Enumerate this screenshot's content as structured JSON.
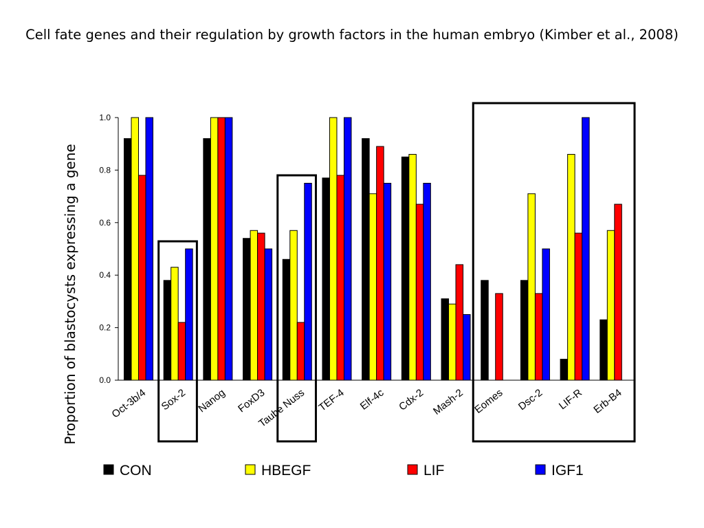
{
  "title": "Cell fate genes and their regulation by growth factors in the human embryo (Kimber et al., 2008)",
  "chart_data": {
    "type": "bar",
    "ylabel": "Proportion of blastocysts expressing a gene",
    "xlabel": "",
    "ylim": [
      0,
      1.0
    ],
    "yticks": [
      "0.0",
      "0.2",
      "0.4",
      "0.6",
      "0.8",
      "1.0"
    ],
    "grid": false,
    "legend_position": "bottom",
    "categories": [
      "Oct-3b/4",
      "Sox-2",
      "Nanog",
      "FoxD3",
      "Taube Nuss",
      "TEF-4",
      "Elf-4c",
      "Cdx-2",
      "Mash-2",
      "Eomes",
      "Dsc-2",
      "LIF-R",
      "Erb-B4"
    ],
    "series": [
      {
        "name": "CON",
        "color": "#000000",
        "values": [
          0.92,
          0.38,
          0.92,
          0.54,
          0.46,
          0.77,
          0.92,
          0.85,
          0.31,
          0.38,
          0.38,
          0.08,
          0.23
        ]
      },
      {
        "name": "HBEGF",
        "color": "#ffff00",
        "values": [
          1.0,
          0.43,
          1.0,
          0.57,
          0.57,
          1.0,
          0.71,
          0.86,
          0.29,
          0,
          0.71,
          0.86,
          0.57
        ]
      },
      {
        "name": "LIF",
        "color": "#ff0000",
        "values": [
          0.78,
          0.22,
          1.0,
          0.56,
          0.22,
          0.78,
          0.89,
          0.67,
          0.44,
          0.33,
          0.33,
          0.56,
          0.67
        ]
      },
      {
        "name": "IGF1",
        "color": "#0000ff",
        "values": [
          1.0,
          0.5,
          1.0,
          0.5,
          0.75,
          1.0,
          0.75,
          0.75,
          0.25,
          0,
          0.5,
          1.0,
          0
        ]
      }
    ],
    "highlighted_groups": [
      [
        "Sox-2"
      ],
      [
        "Taube Nuss"
      ],
      [
        "Eomes",
        "Dsc-2",
        "LIF-R",
        "Erb-B4"
      ]
    ]
  }
}
